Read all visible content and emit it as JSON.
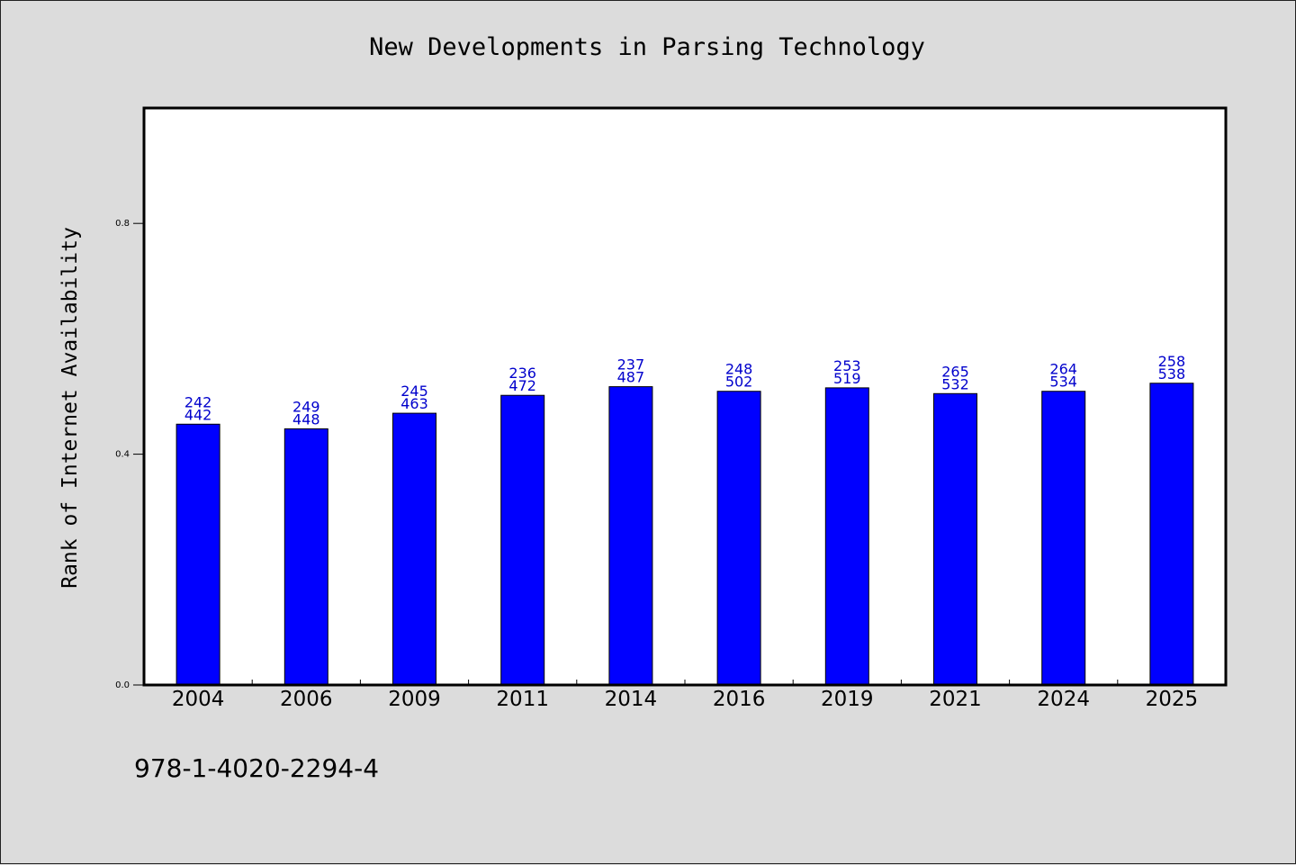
{
  "chart_data": {
    "type": "bar",
    "title": "New Developments in Parsing Technology",
    "xlabel": "",
    "ylabel": "Rank of Internet Availability",
    "categories": [
      "2004",
      "2006",
      "2009",
      "2011",
      "2014",
      "2016",
      "2019",
      "2021",
      "2024",
      "2025"
    ],
    "values": [
      0.452,
      0.444,
      0.471,
      0.502,
      0.517,
      0.509,
      0.515,
      0.505,
      0.509,
      0.523
    ],
    "data_labels_top": [
      "242",
      "249",
      "245",
      "236",
      "237",
      "248",
      "253",
      "265",
      "264",
      "258"
    ],
    "data_labels_bottom": [
      "442",
      "448",
      "463",
      "472",
      "487",
      "502",
      "519",
      "532",
      "534",
      "538"
    ],
    "yticks": [
      0.0,
      0.4,
      0.8
    ],
    "ytick_labels": [
      "0.0",
      "0.4",
      "0.8"
    ],
    "ylim": [
      0,
      1.0
    ],
    "grid": false,
    "bar_color": "#0000ff",
    "label_color": "#0000cc"
  },
  "footer": {
    "isbn": "978-1-4020-2294-4"
  }
}
